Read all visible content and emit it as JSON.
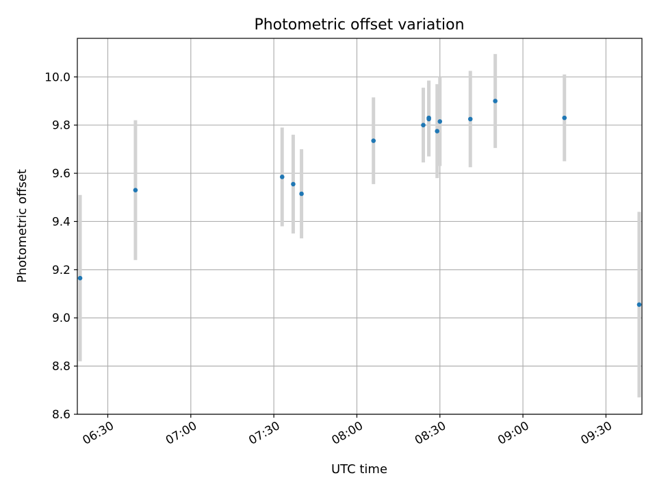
{
  "chart_data": {
    "type": "scatter",
    "title": "Photometric offset variation",
    "xlabel": "UTC time",
    "ylabel": "Photometric offset",
    "x_ticks": [
      "06:30",
      "07:00",
      "07:30",
      "08:00",
      "08:30",
      "09:00",
      "09:30"
    ],
    "xlim": [
      "06:19",
      "09:43"
    ],
    "ylim": [
      8.6,
      10.16
    ],
    "y_ticks": [
      "8.6",
      "8.8",
      "9.0",
      "9.2",
      "9.4",
      "9.6",
      "9.8",
      "10.0"
    ],
    "grid": true,
    "series": [
      {
        "marker_color": "#1f77b4",
        "errorbar_color": "#d3d3d3",
        "points": [
          {
            "x": "06:20",
            "y": 9.165,
            "err": 0.345
          },
          {
            "x": "06:40",
            "y": 9.53,
            "err": 0.29
          },
          {
            "x": "07:33",
            "y": 9.585,
            "err": 0.205
          },
          {
            "x": "07:37",
            "y": 9.555,
            "err": 0.205
          },
          {
            "x": "07:40",
            "y": 9.515,
            "err": 0.185
          },
          {
            "x": "08:06",
            "y": 9.735,
            "err": 0.18
          },
          {
            "x": "08:24",
            "y": 9.8,
            "err": 0.155
          },
          {
            "x": "08:26",
            "y": 9.825,
            "err": 0.155
          },
          {
            "x": "08:26",
            "y": 9.83,
            "err": 0.155
          },
          {
            "x": "08:29",
            "y": 9.775,
            "err": 0.195
          },
          {
            "x": "08:30",
            "y": 9.815,
            "err": 0.185
          },
          {
            "x": "08:41",
            "y": 9.825,
            "err": 0.2
          },
          {
            "x": "08:50",
            "y": 9.9,
            "err": 0.195
          },
          {
            "x": "09:15",
            "y": 9.83,
            "err": 0.18
          },
          {
            "x": "09:42",
            "y": 9.055,
            "err": 0.385
          }
        ]
      }
    ]
  }
}
